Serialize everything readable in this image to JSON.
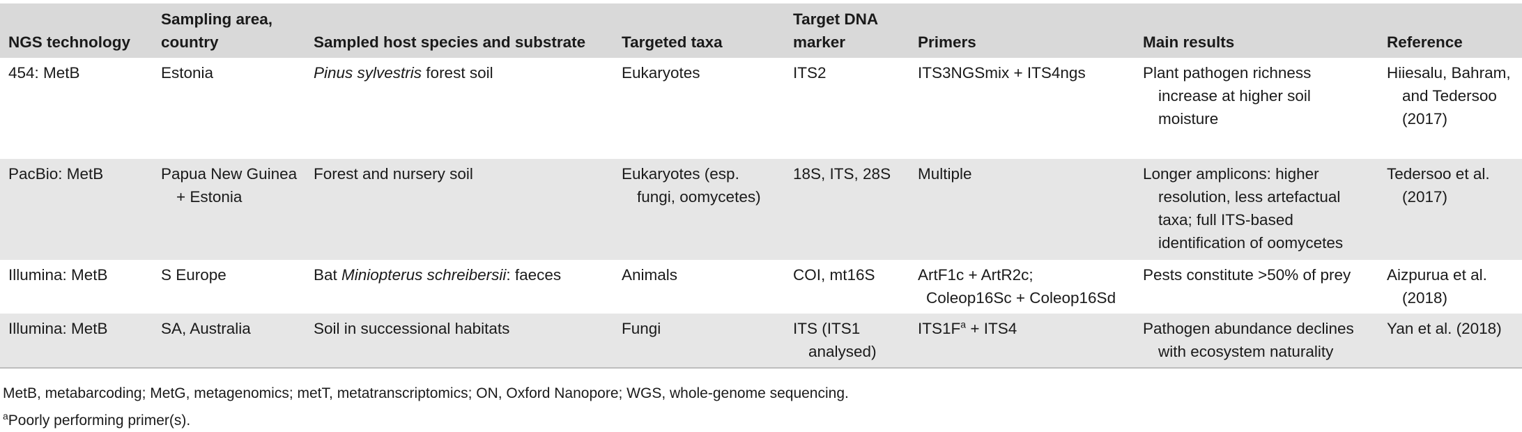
{
  "headers": {
    "ngs": "NGS technology",
    "area_l1": "Sampling area,",
    "area_l2": "country",
    "host": "Sampled host species and substrate",
    "taxa": "Targeted taxa",
    "marker_l1": "Target DNA",
    "marker_l2": "marker",
    "primers": "Primers",
    "results": "Main results",
    "reference": "Reference"
  },
  "rows": [
    {
      "ngs": "454: MetB",
      "area": "Estonia",
      "host_italic": "Pinus sylvestris",
      "host_rest": " forest soil",
      "taxa": "Eukaryotes",
      "marker": "ITS2",
      "primers": "ITS3NGSmix + ITS4ngs",
      "results": "Plant pathogen richness increase at higher soil moisture",
      "reference": "Hiiesalu, Bahram, and Tedersoo (2017)"
    },
    {
      "ngs": "PacBio: MetB",
      "area": "Papua New Guinea + Estonia",
      "host": "Forest and nursery soil",
      "taxa": "Eukaryotes (esp. fungi, oomycetes)",
      "marker": "18S, ITS, 28S",
      "primers": "Multiple",
      "results": "Longer amplicons: higher resolution, less artefactual taxa; full ITS-based identification of oomycetes",
      "reference": "Tedersoo et al. (2017)"
    },
    {
      "ngs": "Illumina: MetB",
      "area": "S Europe",
      "host_pre": "Bat ",
      "host_italic": "Miniopterus schreibersii",
      "host_rest": ": faeces",
      "taxa": "Animals",
      "marker": "COI, mt16S",
      "primers_l1": "ArtF1c + ArtR2c;",
      "primers_l2": "Coleop16Sc + Coleop16Sd",
      "results": "Pests constitute >50% of prey",
      "reference": "Aizpurua et al. (2018)"
    },
    {
      "ngs": "Illumina: MetB",
      "area": "SA, Australia",
      "host": "Soil in successional habitats",
      "taxa": "Fungi",
      "marker": "ITS (ITS1 analysed)",
      "primers_pre": "ITS1F",
      "primers_sup": "a",
      "primers_post": " + ITS4",
      "results": "Pathogen abundance declines with ecosystem naturality",
      "reference": "Yan et al. (2018)"
    }
  ],
  "notes": {
    "abbrev": "MetB, metabarcoding; MetG, metagenomics; metT, metatranscriptomics; ON, Oxford Nanopore; WGS, whole-genome sequencing.",
    "footnote_mark": "a",
    "footnote_text": "Poorly performing primer(s)."
  }
}
